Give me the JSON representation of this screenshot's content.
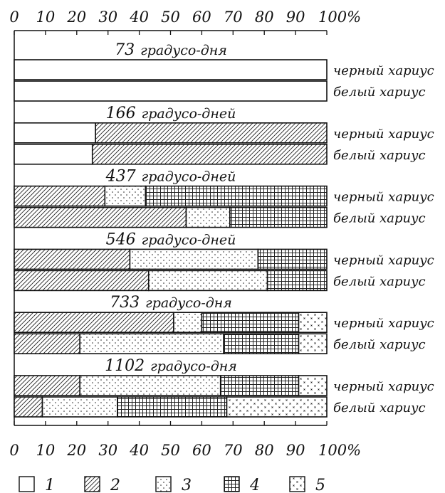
{
  "chart_data": {
    "type": "bar",
    "orientation": "horizontal",
    "stacked": true,
    "xlim": [
      0,
      100
    ],
    "x_ticks": [
      "0",
      "10",
      "20",
      "30",
      "40",
      "50",
      "60",
      "70",
      "80",
      "90",
      "100%"
    ],
    "legend": {
      "placement": "bottom",
      "entries": [
        {
          "label": "1",
          "pattern": "blank"
        },
        {
          "label": "2",
          "pattern": "hatch"
        },
        {
          "label": "3",
          "pattern": "dots"
        },
        {
          "label": "4",
          "pattern": "grid"
        },
        {
          "label": "5",
          "pattern": "crosses"
        }
      ]
    },
    "groups": [
      {
        "value": "73",
        "unit": "градусо-дня",
        "bars": [
          {
            "name": "черный хариус",
            "values": [
              100,
              0,
              0,
              0,
              0
            ]
          },
          {
            "name": "белый хариус",
            "values": [
              100,
              0,
              0,
              0,
              0
            ]
          }
        ]
      },
      {
        "value": "166",
        "unit": "градусо-дней",
        "bars": [
          {
            "name": "черный хариус",
            "values": [
              26,
              74,
              0,
              0,
              0
            ]
          },
          {
            "name": "белый хариус",
            "values": [
              25,
              75,
              0,
              0,
              0
            ]
          }
        ]
      },
      {
        "value": "437",
        "unit": "градусо-дней",
        "bars": [
          {
            "name": "черный хариус",
            "values": [
              0,
              29,
              13,
              58,
              0
            ]
          },
          {
            "name": "белый хариус",
            "values": [
              0,
              55,
              14,
              31,
              0
            ]
          }
        ]
      },
      {
        "value": "546",
        "unit": "градусо-дней",
        "bars": [
          {
            "name": "черный хариус",
            "values": [
              0,
              37,
              41,
              22,
              0
            ]
          },
          {
            "name": "белый хариус",
            "values": [
              0,
              43,
              38,
              19,
              0
            ]
          }
        ]
      },
      {
        "value": "733",
        "unit": "градусо-дня",
        "bars": [
          {
            "name": "черный хариус",
            "values": [
              0,
              51,
              9,
              31,
              9
            ]
          },
          {
            "name": "белый хариус",
            "values": [
              0,
              21,
              46,
              24,
              9
            ]
          }
        ]
      },
      {
        "value": "1102",
        "unit": "градусо-дня",
        "bars": [
          {
            "name": "черный хариус",
            "values": [
              0,
              21,
              45,
              25,
              9
            ]
          },
          {
            "name": "белый хариус",
            "values": [
              0,
              9,
              24,
              35,
              32
            ]
          }
        ]
      }
    ]
  }
}
